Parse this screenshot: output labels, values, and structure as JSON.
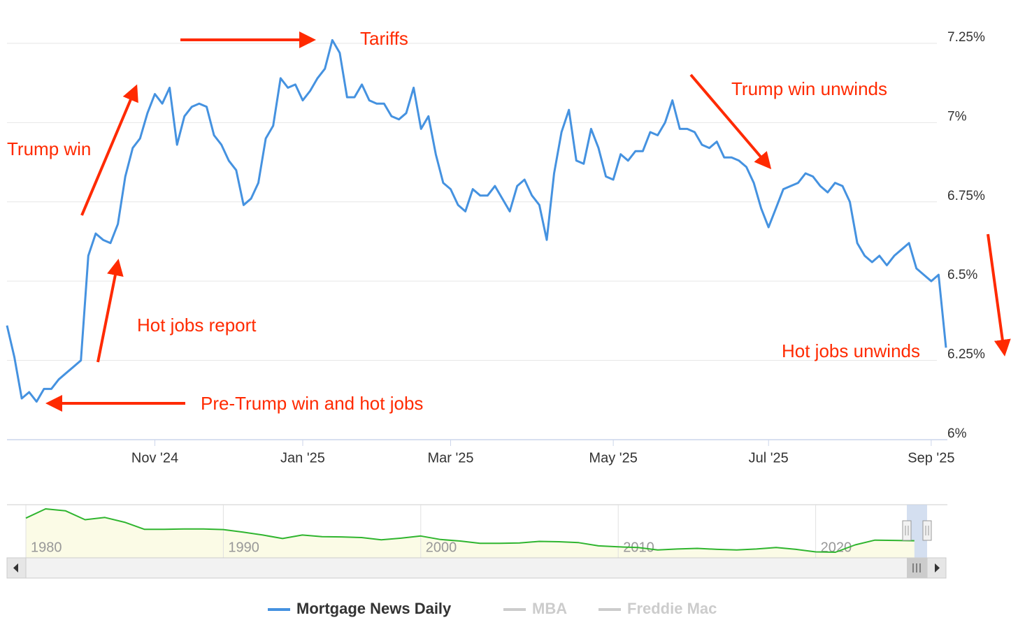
{
  "chart_data": [
    {
      "type": "line",
      "categories": [
        null,
        null,
        null,
        null,
        null,
        null,
        null,
        null,
        null,
        null,
        null,
        null,
        null,
        null,
        null,
        null,
        null,
        null,
        null,
        null,
        "Nov '24",
        null,
        null,
        null,
        null,
        null,
        null,
        null,
        null,
        null,
        null,
        null,
        null,
        null,
        null,
        null,
        null,
        null,
        null,
        null,
        "Jan '25",
        null,
        null,
        null,
        null,
        null,
        null,
        null,
        null,
        null,
        null,
        null,
        null,
        null,
        null,
        null,
        null,
        null,
        null,
        null,
        "Mar '25",
        null,
        null,
        null,
        null,
        null,
        null,
        null,
        null,
        null,
        null,
        null,
        null,
        null,
        null,
        null,
        null,
        null,
        null,
        null,
        null,
        null,
        "May '25",
        null,
        null,
        null,
        null,
        null,
        null,
        null,
        null,
        null,
        null,
        null,
        null,
        null,
        null,
        null,
        null,
        null,
        null,
        null,
        null,
        "Jul '25",
        null,
        null,
        null,
        null,
        null,
        null,
        null,
        null,
        null,
        null,
        null,
        null,
        null,
        null,
        null,
        null,
        null,
        null,
        null,
        null,
        null,
        "Sep '25",
        null,
        null
      ],
      "series": [
        {
          "name": "Mortgage News Daily",
          "color": "#4592e0",
          "values": [
            6.36,
            6.26,
            6.13,
            6.15,
            6.12,
            6.16,
            6.16,
            6.19,
            6.21,
            6.23,
            6.25,
            6.58,
            6.65,
            6.63,
            6.62,
            6.68,
            6.83,
            6.92,
            6.95,
            7.03,
            7.09,
            7.06,
            7.11,
            6.93,
            7.02,
            7.05,
            7.06,
            7.05,
            6.96,
            6.93,
            6.88,
            6.85,
            6.74,
            6.76,
            6.81,
            6.95,
            6.99,
            7.14,
            7.11,
            7.12,
            7.07,
            7.1,
            7.14,
            7.17,
            7.26,
            7.22,
            7.08,
            7.08,
            7.12,
            7.07,
            7.06,
            7.06,
            7.02,
            7.01,
            7.03,
            7.11,
            6.98,
            7.02,
            6.9,
            6.81,
            6.79,
            6.74,
            6.72,
            6.79,
            6.77,
            6.77,
            6.8,
            6.76,
            6.72,
            6.8,
            6.82,
            6.77,
            6.74,
            6.63,
            6.84,
            6.97,
            7.04,
            6.88,
            6.87,
            6.98,
            6.92,
            6.83,
            6.82,
            6.9,
            6.88,
            6.91,
            6.91,
            6.97,
            6.96,
            7.0,
            7.07,
            6.98,
            6.98,
            6.97,
            6.93,
            6.92,
            6.94,
            6.89,
            6.89,
            6.88,
            6.86,
            6.81,
            6.73,
            6.67,
            6.73,
            6.79,
            6.8,
            6.81,
            6.84,
            6.83,
            6.8,
            6.78,
            6.81,
            6.8,
            6.75,
            6.62,
            6.58,
            6.56,
            6.58,
            6.55,
            6.58,
            6.6,
            6.62,
            6.54,
            6.52,
            6.5,
            6.52,
            6.29
          ]
        }
      ],
      "ylim": [
        6,
        7.35
      ],
      "yticks": [
        {
          "value": 6,
          "label": "6%"
        },
        {
          "value": 6.25,
          "label": "6.25%"
        },
        {
          "value": 6.5,
          "label": "6.5%"
        },
        {
          "value": 6.75,
          "label": "6.75%"
        },
        {
          "value": 7,
          "label": "7%"
        },
        {
          "value": 7.25,
          "label": "7.25%"
        }
      ],
      "grid": true,
      "annotations": [
        {
          "text": "Tariffs"
        },
        {
          "text": "Trump win unwinds"
        },
        {
          "text": "Trump win"
        },
        {
          "text": "Hot jobs report"
        },
        {
          "text": "Hot jobs unwinds"
        },
        {
          "text": "Pre-Trump win and hot jobs"
        }
      ],
      "legend_extra": [
        {
          "name": "MBA",
          "color": "#cccccc"
        },
        {
          "name": "Freddie Mac",
          "color": "#cccccc"
        }
      ]
    },
    {
      "type": "line",
      "x": [
        1980,
        1981,
        1982,
        1983,
        1984,
        1985,
        1986,
        1987,
        1988,
        1989,
        1990,
        1991,
        1992,
        1993,
        1994,
        1995,
        1996,
        1997,
        1998,
        1999,
        2000,
        2001,
        2002,
        2003,
        2004,
        2005,
        2006,
        2007,
        2008,
        2009,
        2010,
        2011,
        2012,
        2013,
        2014,
        2015,
        2016,
        2017,
        2018,
        2019,
        2020,
        2021,
        2022,
        2023,
        2024,
        2025
      ],
      "series": [
        {
          "color": "#2fb52f",
          "values": [
            13.7,
            16.6,
            16.0,
            13.2,
            13.9,
            12.4,
            10.2,
            10.2,
            10.3,
            10.3,
            10.1,
            9.3,
            8.4,
            7.3,
            8.4,
            7.9,
            7.8,
            7.6,
            6.9,
            7.4,
            8.1,
            7.0,
            6.5,
            5.8,
            5.8,
            5.9,
            6.4,
            6.3,
            6.0,
            5.0,
            4.7,
            4.5,
            3.7,
            4.0,
            4.2,
            3.9,
            3.7,
            4.0,
            4.5,
            3.9,
            3.1,
            3.0,
            5.3,
            6.8,
            6.7,
            6.6
          ]
        }
      ],
      "xlim": [
        1980,
        2026.6
      ],
      "xticks": [
        1980,
        1990,
        2000,
        2010,
        2020
      ]
    }
  ]
}
